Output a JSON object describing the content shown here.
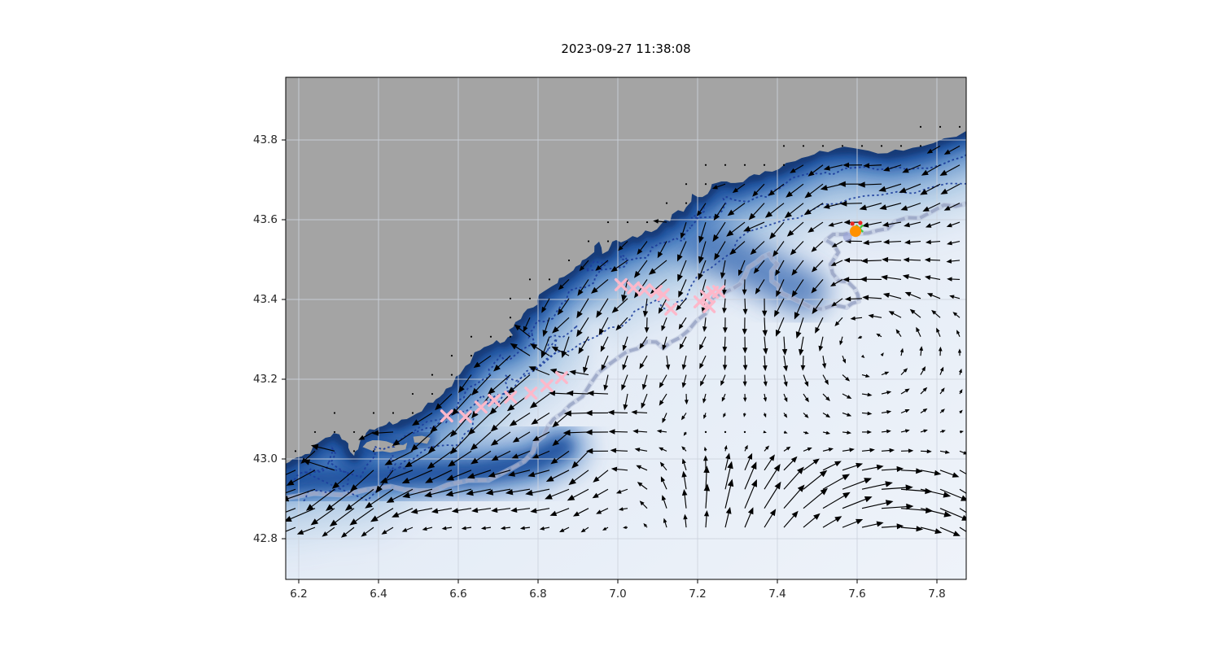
{
  "chart_data": {
    "type": "map-quiver",
    "title": "2023-09-27 11:38:08",
    "xlim": [
      6.167,
      7.873
    ],
    "ylim": [
      42.698,
      43.957
    ],
    "x_ticks": [
      6.2,
      6.4,
      6.6,
      6.8,
      7.0,
      7.2,
      7.4,
      7.6,
      7.8
    ],
    "y_ticks": [
      42.8,
      43.0,
      43.2,
      43.4,
      43.6,
      43.8
    ],
    "grid": true,
    "colors": {
      "land": "#a4a4a4",
      "ocean_base": "#e9eff8",
      "band_halo": "#9dbede",
      "band_light": "#4a7ec2",
      "band_mid": "#1d4f9c",
      "band_dark": "#143a78",
      "pale_tongue": "#e6edf7",
      "contour_dashed": "#1d3e9c",
      "contour_thick": "#9aa6c6",
      "gridline": "#cdd3de",
      "arrow": "#000000",
      "frame": "#000000",
      "pink": "#fdb8ca",
      "orange": "#ff9100",
      "red": "#e8261f",
      "green": "#3fc93f",
      "lavender_marker": "#99a3d6"
    },
    "map": {
      "coastline": [
        [
          7.876,
          43.824
        ],
        [
          7.818,
          43.804
        ],
        [
          7.763,
          43.784
        ],
        [
          7.716,
          43.773
        ],
        [
          7.676,
          43.767
        ],
        [
          7.629,
          43.773
        ],
        [
          7.588,
          43.78
        ],
        [
          7.547,
          43.778
        ],
        [
          7.506,
          43.773
        ],
        [
          7.478,
          43.759
        ],
        [
          7.445,
          43.747
        ],
        [
          7.404,
          43.727
        ],
        [
          7.369,
          43.722
        ],
        [
          7.355,
          43.712
        ],
        [
          7.329,
          43.708
        ],
        [
          7.294,
          43.692
        ],
        [
          7.273,
          43.696
        ],
        [
          7.247,
          43.692
        ],
        [
          7.233,
          43.678
        ],
        [
          7.212,
          43.657
        ],
        [
          7.2,
          43.657
        ],
        [
          7.186,
          43.665
        ],
        [
          7.171,
          43.631
        ],
        [
          7.165,
          43.62
        ],
        [
          7.151,
          43.624
        ],
        [
          7.131,
          43.596
        ],
        [
          7.118,
          43.6
        ],
        [
          7.098,
          43.576
        ],
        [
          7.084,
          43.569
        ],
        [
          7.069,
          43.573
        ],
        [
          7.049,
          43.555
        ],
        [
          7.037,
          43.559
        ],
        [
          7.022,
          43.549
        ],
        [
          7.008,
          43.543
        ],
        [
          6.996,
          43.549
        ],
        [
          6.982,
          43.535
        ],
        [
          6.976,
          43.522
        ],
        [
          6.961,
          43.514
        ],
        [
          6.953,
          43.545
        ],
        [
          6.941,
          43.519
        ],
        [
          6.935,
          43.514
        ],
        [
          6.92,
          43.502
        ],
        [
          6.906,
          43.488
        ],
        [
          6.894,
          43.482
        ],
        [
          6.88,
          43.467
        ],
        [
          6.865,
          43.457
        ],
        [
          6.849,
          43.441
        ],
        [
          6.835,
          43.433
        ],
        [
          6.814,
          43.42
        ],
        [
          6.798,
          43.4
        ],
        [
          6.788,
          43.38
        ],
        [
          6.773,
          43.376
        ],
        [
          6.757,
          43.351
        ],
        [
          6.743,
          43.343
        ],
        [
          6.727,
          43.324
        ],
        [
          6.737,
          43.31
        ],
        [
          6.716,
          43.294
        ],
        [
          6.696,
          43.298
        ],
        [
          6.676,
          43.284
        ],
        [
          6.655,
          43.273
        ],
        [
          6.635,
          43.253
        ],
        [
          6.618,
          43.233
        ],
        [
          6.604,
          43.212
        ],
        [
          6.59,
          43.196
        ],
        [
          6.569,
          43.176
        ],
        [
          6.553,
          43.155
        ],
        [
          6.537,
          43.141
        ],
        [
          6.516,
          43.131
        ],
        [
          6.496,
          43.114
        ],
        [
          6.471,
          43.1
        ],
        [
          6.447,
          43.09
        ],
        [
          6.427,
          43.094
        ],
        [
          6.41,
          43.082
        ],
        [
          6.39,
          43.073
        ],
        [
          6.369,
          43.065
        ],
        [
          6.355,
          43.049
        ],
        [
          6.349,
          43.024
        ],
        [
          6.339,
          43.008
        ],
        [
          6.329,
          43.018
        ],
        [
          6.324,
          43.039
        ],
        [
          6.308,
          43.049
        ],
        [
          6.288,
          43.065
        ],
        [
          6.267,
          43.053
        ],
        [
          6.247,
          43.039
        ],
        [
          6.233,
          43.024
        ],
        [
          6.216,
          43.012
        ],
        [
          6.196,
          43.004
        ],
        [
          6.176,
          42.992
        ],
        [
          6.167,
          42.988
        ]
      ],
      "islands": [
        [
          [
            6.36,
            43.03
          ],
          [
            6.385,
            43.047
          ],
          [
            6.42,
            43.044
          ],
          [
            6.45,
            43.036
          ],
          [
            6.472,
            43.041
          ],
          [
            6.468,
            43.024
          ],
          [
            6.43,
            43.016
          ],
          [
            6.39,
            43.018
          ]
        ],
        [
          [
            6.487,
            43.056
          ],
          [
            6.53,
            43.053
          ],
          [
            6.522,
            43.038
          ],
          [
            6.49,
            43.041
          ]
        ]
      ],
      "shading": {
        "bottom_left_band": [
          [
            6.167,
            42.945
          ],
          [
            6.32,
            42.952
          ],
          [
            6.5,
            42.962
          ],
          [
            6.65,
            42.968
          ],
          [
            6.78,
            42.99
          ],
          [
            6.86,
            43.03
          ]
        ],
        "wide_dark_patch": [
          [
            7.2,
            43.55
          ],
          [
            7.3,
            43.5
          ],
          [
            7.4,
            43.45
          ],
          [
            7.47,
            43.42
          ]
        ],
        "pale_tongue": [
          [
            7.03,
            43.03
          ],
          [
            6.99,
            43.18
          ],
          [
            6.94,
            43.33
          ]
        ]
      },
      "lavender_contour": [
        [
          6.167,
          42.902
        ],
        [
          6.31,
          42.91
        ],
        [
          6.43,
          42.931
        ],
        [
          6.5,
          42.92
        ],
        [
          6.573,
          42.935
        ],
        [
          6.676,
          42.947
        ],
        [
          6.737,
          42.978
        ],
        [
          6.788,
          43.018
        ],
        [
          6.814,
          43.059
        ],
        [
          6.839,
          43.1
        ],
        [
          6.88,
          43.135
        ],
        [
          6.931,
          43.188
        ],
        [
          6.978,
          43.237
        ],
        [
          7.022,
          43.269
        ],
        [
          7.073,
          43.294
        ],
        [
          7.114,
          43.278
        ],
        [
          7.155,
          43.304
        ],
        [
          7.196,
          43.345
        ],
        [
          7.231,
          43.392
        ],
        [
          7.255,
          43.412
        ],
        [
          7.288,
          43.427
        ],
        [
          7.318,
          43.457
        ],
        [
          7.349,
          43.494
        ],
        [
          7.38,
          43.514
        ],
        [
          7.4,
          43.488
        ],
        [
          7.386,
          43.447
        ],
        [
          7.41,
          43.416
        ],
        [
          7.461,
          43.392
        ],
        [
          7.512,
          43.376
        ],
        [
          7.573,
          43.38
        ],
        [
          7.604,
          43.396
        ],
        [
          7.594,
          43.427
        ],
        [
          7.553,
          43.447
        ],
        [
          7.533,
          43.488
        ],
        [
          7.553,
          43.518
        ],
        [
          7.522,
          43.549
        ],
        [
          7.563,
          43.563
        ],
        [
          7.604,
          43.565
        ],
        [
          7.651,
          43.573
        ],
        [
          7.696,
          43.596
        ],
        [
          7.757,
          43.604
        ],
        [
          7.818,
          43.637
        ],
        [
          7.876,
          43.641
        ]
      ],
      "dashed_long_contour": [
        [
          6.49,
          43.07
        ],
        [
          6.56,
          43.1
        ],
        [
          6.62,
          43.12
        ],
        [
          6.66,
          43.16
        ],
        [
          6.7,
          43.14
        ],
        [
          6.74,
          43.18
        ],
        [
          6.77,
          43.22
        ],
        [
          6.82,
          43.25
        ],
        [
          6.88,
          43.27
        ],
        [
          6.93,
          43.3
        ],
        [
          6.98,
          43.33
        ],
        [
          7.03,
          43.35
        ],
        [
          7.06,
          43.38
        ],
        [
          7.1,
          43.4
        ],
        [
          7.13,
          43.37
        ],
        [
          7.17,
          43.4
        ],
        [
          7.2,
          43.46
        ],
        [
          7.26,
          43.5
        ],
        [
          7.3,
          43.55
        ],
        [
          7.36,
          43.58
        ],
        [
          7.42,
          43.6
        ],
        [
          7.48,
          43.62
        ],
        [
          7.55,
          43.64
        ],
        [
          7.62,
          43.66
        ],
        [
          7.7,
          43.67
        ],
        [
          7.78,
          43.68
        ],
        [
          7.876,
          43.69
        ]
      ]
    },
    "markers": {
      "pink_x_drifters": [
        [
          6.571,
          43.108
        ],
        [
          6.618,
          43.106
        ],
        [
          6.657,
          43.13
        ],
        [
          6.69,
          43.147
        ],
        [
          6.731,
          43.155
        ],
        [
          6.782,
          43.165
        ],
        [
          6.822,
          43.184
        ],
        [
          6.859,
          43.204
        ],
        [
          7.008,
          43.437
        ],
        [
          7.039,
          43.429
        ],
        [
          7.067,
          43.424
        ],
        [
          7.096,
          43.42
        ],
        [
          7.114,
          43.412
        ],
        [
          7.133,
          43.376
        ],
        [
          7.206,
          43.394
        ],
        [
          7.222,
          43.408
        ],
        [
          7.237,
          43.418
        ],
        [
          7.253,
          43.42
        ],
        [
          7.229,
          43.382
        ]
      ],
      "orange_dot": [
        7.596,
        43.571
      ],
      "red_dots": [
        [
          7.588,
          43.59
        ],
        [
          7.608,
          43.592
        ]
      ],
      "green_x": [
        7.606,
        43.578
      ],
      "lavender_dot": [
        7.576,
        43.557
      ]
    },
    "quiver": {
      "x0": 12,
      "y0": 14,
      "dx": 24,
      "dy": 23.44,
      "cols": 35,
      "rows": 24,
      "max_len": 44,
      "field": {
        "jet": {
          "d0": 40,
          "sigma": 55,
          "mag": 26,
          "offshore_tilt": 0.18
        },
        "offshore_ssw": {
          "d0": 155,
          "sigma": 80,
          "mag": 17,
          "rot": 0.66,
          "lon_min": 6.82,
          "lon_max": 7.58
        },
        "offshore_w_right": {
          "d0": 150,
          "sigma": 75,
          "mag": 14,
          "lon_min": 7.55
        },
        "eddy_ccw": {
          "lon": 7.63,
          "lat": 43.295,
          "omega": 150,
          "radius": 0.2
        },
        "sweep_clockwise": {
          "lat0": 42.895,
          "sigma": 0.075,
          "mag": 40,
          "theta0": 80,
          "dtheta": 185,
          "lon_ref": 7.25,
          "lon_start": 7.0,
          "ramp": 0.28
        },
        "midleft_sw": {
          "lon": 6.78,
          "slon": 0.2,
          "lat": 43.1,
          "slat": 0.105,
          "mag": 20,
          "theta_deg": 205
        },
        "west_band": {
          "lat": 42.915,
          "slat": 0.068,
          "mag": 26,
          "lon_edge": 7.1,
          "ramp": 0.22
        }
      }
    }
  }
}
